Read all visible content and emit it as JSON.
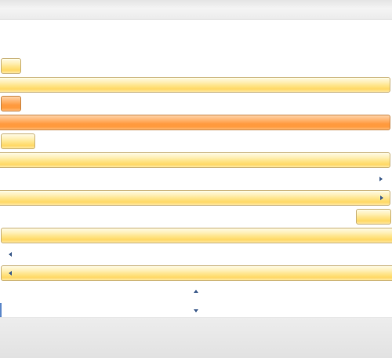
{
  "colors": {
    "gold_light": "#fff0b8",
    "gold": "#ffd865",
    "orange": "#ff9a3f",
    "arrow": "#3b5a8a",
    "border": "#c9b27a"
  },
  "icons": {
    "right_arrow": "triangle-right-icon",
    "left_arrow": "triangle-left-icon",
    "up_arrow": "triangle-up-icon",
    "down_arrow": "triangle-down-icon"
  }
}
